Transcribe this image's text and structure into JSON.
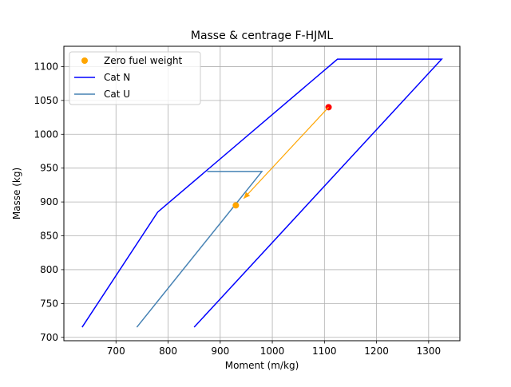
{
  "chart_data": {
    "type": "line",
    "title": "Masse & centrage F-HJML",
    "xlabel": "Moment (m/kg)",
    "ylabel": "Masse (kg)",
    "xlim": [
      600,
      1360
    ],
    "ylim": [
      695,
      1130
    ],
    "xticks": [
      700,
      800,
      900,
      1000,
      1100,
      1200,
      1300
    ],
    "yticks": [
      700,
      750,
      800,
      850,
      900,
      950,
      1000,
      1050,
      1100
    ],
    "grid": true,
    "legend_position": "upper left",
    "series": [
      {
        "name": "Cat N",
        "kind": "line",
        "color": "#0000ff",
        "points": [
          [
            635,
            715
          ],
          [
            780,
            885
          ],
          [
            1125,
            1111
          ],
          [
            1325,
            1111
          ],
          [
            850,
            715
          ]
        ]
      },
      {
        "name": "Cat U",
        "kind": "line",
        "color": "#4682b4",
        "points": [
          [
            740,
            715
          ],
          [
            980,
            945
          ],
          [
            875,
            945
          ]
        ]
      },
      {
        "name": "Zero fuel weight",
        "kind": "scatter",
        "color": "#ffa500",
        "points": [
          [
            930,
            895
          ]
        ]
      },
      {
        "name": "",
        "kind": "scatter",
        "color": "#ff0000",
        "points": [
          [
            1108,
            1040
          ]
        ]
      },
      {
        "name": "",
        "kind": "arrow",
        "color": "#ffa500",
        "points": [
          [
            1108,
            1040
          ],
          [
            945,
            905
          ]
        ]
      }
    ],
    "legend": [
      "Zero fuel weight",
      "Cat N",
      "Cat U"
    ]
  }
}
